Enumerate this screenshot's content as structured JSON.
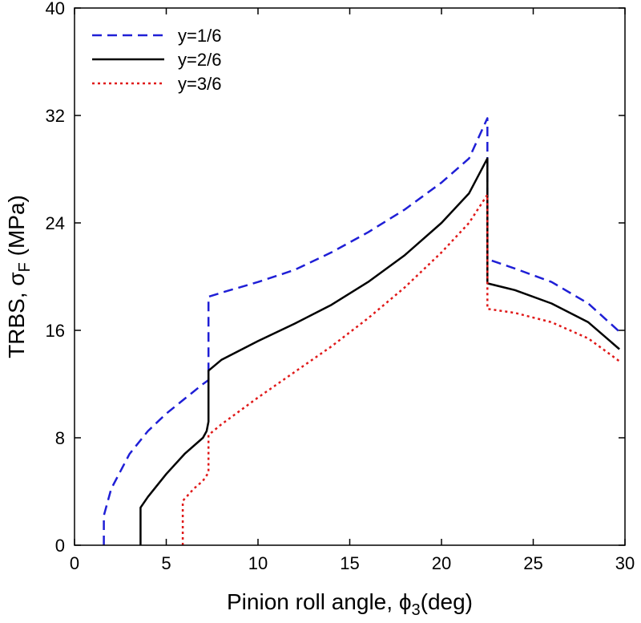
{
  "chart_data": {
    "type": "line",
    "xlabel": {
      "prefix": "Pinion roll angle, ",
      "symbol": "ϕ",
      "subscript": "3",
      "suffix": "(deg)"
    },
    "ylabel": {
      "prefix": "TRBS, ",
      "symbol": "σ",
      "subscript": "F",
      "suffix": " (MPa)"
    },
    "xlim": [
      0,
      30
    ],
    "ylim": [
      0,
      40
    ],
    "xticks": [
      0,
      5,
      10,
      15,
      20,
      25,
      30
    ],
    "yticks": [
      0,
      8,
      16,
      24,
      32,
      40
    ],
    "legend_position": "top-left",
    "series": [
      {
        "name": "y=1/6",
        "color": "#1f1fd6",
        "dash": "dashed",
        "points": [
          [
            1.6,
            0
          ],
          [
            1.6,
            2.2
          ],
          [
            2.0,
            4.2
          ],
          [
            3.0,
            6.8
          ],
          [
            4.0,
            8.5
          ],
          [
            5.0,
            9.8
          ],
          [
            6.0,
            10.9
          ],
          [
            7.0,
            12.0
          ],
          [
            7.3,
            12.3
          ],
          [
            7.3,
            18.5
          ],
          [
            8.0,
            18.8
          ],
          [
            10.0,
            19.6
          ],
          [
            12.0,
            20.5
          ],
          [
            14.0,
            21.8
          ],
          [
            16.0,
            23.3
          ],
          [
            18.0,
            25.0
          ],
          [
            20.0,
            27.0
          ],
          [
            21.5,
            28.8
          ],
          [
            22.5,
            31.8
          ],
          [
            22.5,
            21.3
          ],
          [
            24.0,
            20.6
          ],
          [
            26.0,
            19.6
          ],
          [
            28.0,
            18.0
          ],
          [
            29.7,
            15.9
          ]
        ]
      },
      {
        "name": "y=2/6",
        "color": "#000000",
        "dash": "solid",
        "points": [
          [
            3.6,
            0
          ],
          [
            3.6,
            2.8
          ],
          [
            4.0,
            3.6
          ],
          [
            5.0,
            5.3
          ],
          [
            6.0,
            6.8
          ],
          [
            7.0,
            8.0
          ],
          [
            7.2,
            8.5
          ],
          [
            7.3,
            9.2
          ],
          [
            7.3,
            13.0
          ],
          [
            8.0,
            13.8
          ],
          [
            10.0,
            15.2
          ],
          [
            12.0,
            16.5
          ],
          [
            14.0,
            17.9
          ],
          [
            16.0,
            19.6
          ],
          [
            18.0,
            21.6
          ],
          [
            20.0,
            24.0
          ],
          [
            21.5,
            26.2
          ],
          [
            22.5,
            28.8
          ],
          [
            22.5,
            19.5
          ],
          [
            24.0,
            19.0
          ],
          [
            26.0,
            18.0
          ],
          [
            28.0,
            16.6
          ],
          [
            29.7,
            14.6
          ]
        ]
      },
      {
        "name": "y=3/6",
        "color": "#e01818",
        "dash": "dotted",
        "points": [
          [
            5.9,
            0
          ],
          [
            5.9,
            3.3
          ],
          [
            6.5,
            4.2
          ],
          [
            7.0,
            4.8
          ],
          [
            7.3,
            5.4
          ],
          [
            7.3,
            8.2
          ],
          [
            8.0,
            9.0
          ],
          [
            10.0,
            11.0
          ],
          [
            12.0,
            12.9
          ],
          [
            14.0,
            14.8
          ],
          [
            16.0,
            16.9
          ],
          [
            18.0,
            19.2
          ],
          [
            20.0,
            21.8
          ],
          [
            21.5,
            24.0
          ],
          [
            22.5,
            26.1
          ],
          [
            22.5,
            17.6
          ],
          [
            24.0,
            17.3
          ],
          [
            26.0,
            16.6
          ],
          [
            28.0,
            15.4
          ],
          [
            29.7,
            13.7
          ]
        ]
      }
    ]
  }
}
